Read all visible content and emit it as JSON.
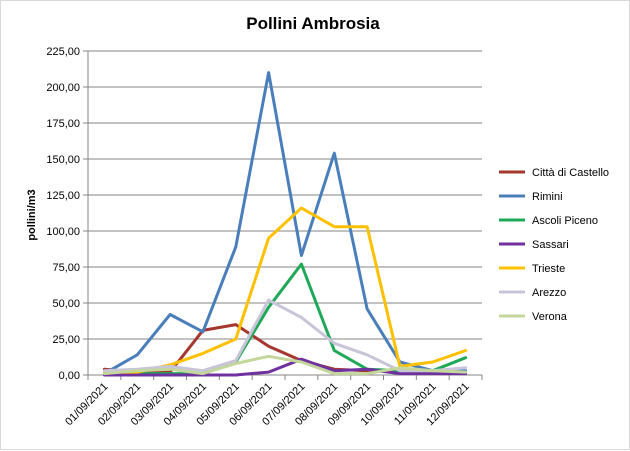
{
  "chart_data": {
    "type": "line",
    "title": "Pollini Ambrosia",
    "xlabel": "",
    "ylabel": "pollini/m3",
    "ylim": [
      0,
      225
    ],
    "yticks": [
      "0,00",
      "25,00",
      "50,00",
      "75,00",
      "100,00",
      "125,00",
      "150,00",
      "175,00",
      "200,00",
      "225,00"
    ],
    "grid": true,
    "legend_position": "right",
    "categories": [
      "01/09/2021",
      "02/09/2021",
      "03/09/2021",
      "04/09/2021",
      "05/09/2021",
      "06/09/2021",
      "07/09/2021",
      "08/09/2021",
      "09/09/2021",
      "10/09/2021",
      "11/09/2021",
      "12/09/2021"
    ],
    "series": [
      {
        "name": "Città di Castello",
        "color": "#A5372E",
        "values": [
          4,
          2,
          2,
          31,
          35,
          20,
          10,
          4,
          3,
          2,
          2,
          2
        ]
      },
      {
        "name": "Rimini",
        "color": "#4A7EBB",
        "values": [
          1,
          14,
          42,
          30,
          89,
          210,
          83,
          154,
          46,
          9,
          3,
          3
        ]
      },
      {
        "name": "Ascoli Piceno",
        "color": "#1EA857",
        "values": [
          1,
          1,
          1,
          1,
          9,
          47,
          77,
          17,
          4,
          3,
          3,
          12
        ]
      },
      {
        "name": "Sassari",
        "color": "#7030A0",
        "values": [
          0,
          0,
          0,
          0,
          0,
          2,
          11,
          3,
          4,
          1,
          1,
          1
        ]
      },
      {
        "name": "Trieste",
        "color": "#FFC000",
        "values": [
          2,
          2,
          7,
          15,
          25,
          95,
          116,
          103,
          103,
          6,
          9,
          17
        ]
      },
      {
        "name": "Arezzo",
        "color": "#C9C5D9",
        "values": [
          3,
          4,
          6,
          3,
          10,
          52,
          40,
          22,
          14,
          3,
          3,
          5
        ]
      },
      {
        "name": "Verona",
        "color": "#C3D69B",
        "values": [
          1,
          3,
          4,
          1,
          8,
          13,
          9,
          1,
          1,
          5,
          3,
          2
        ]
      }
    ]
  }
}
